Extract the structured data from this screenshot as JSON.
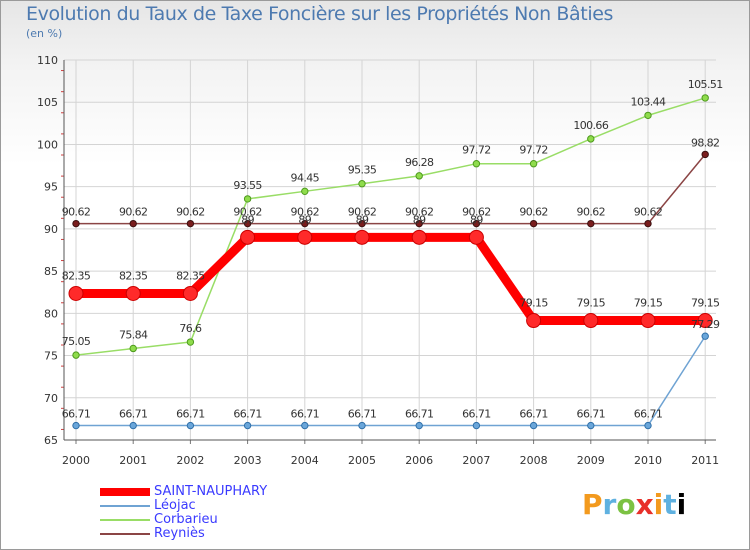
{
  "title": "Evolution du Taux de Taxe Foncière sur les Propriétés Non Bâties",
  "subtitle": "(en %)",
  "logo_text": "Proxiti",
  "chart_data": {
    "type": "line",
    "title": "Evolution du Taux de Taxe Foncière sur les Propriétés Non Bâties",
    "ylabel": "(en %)",
    "xlabel": "",
    "x": [
      "2000",
      "2001",
      "2002",
      "2003",
      "2004",
      "2005",
      "2006",
      "2007",
      "2008",
      "2009",
      "2010",
      "2011"
    ],
    "ylim": [
      65,
      110
    ],
    "yticks": [
      "65",
      "70",
      "75",
      "80",
      "85",
      "90",
      "95",
      "100",
      "105",
      "110"
    ],
    "grid": true,
    "legend_position": "bottom-left",
    "series": [
      {
        "name": "SAINT-NAUPHARY",
        "color": "#ff0000",
        "values": [
          82.35,
          82.35,
          82.35,
          89,
          89,
          89,
          89,
          89,
          79.15,
          79.15,
          79.15,
          79.15
        ],
        "labels": [
          "82.35",
          "82.35",
          "82.35",
          "89",
          "89",
          "89",
          "89",
          "89",
          "79.15",
          "79.15",
          "79.15",
          "79.15"
        ]
      },
      {
        "name": "Léojac",
        "color": "#6fa3d3",
        "values": [
          66.71,
          66.71,
          66.71,
          66.71,
          66.71,
          66.71,
          66.71,
          66.71,
          66.71,
          66.71,
          66.71,
          77.29
        ],
        "labels": [
          "66.71",
          "66.71",
          "66.71",
          "66.71",
          "66.71",
          "66.71",
          "66.71",
          "66.71",
          "66.71",
          "66.71",
          "66.71",
          "77.29"
        ]
      },
      {
        "name": "Corbarieu",
        "color": "#99dd66",
        "values": [
          75.05,
          75.84,
          76.6,
          93.55,
          94.45,
          95.35,
          96.28,
          97.72,
          97.72,
          100.66,
          103.44,
          105.51
        ],
        "labels": [
          "75.05",
          "75.84",
          "76.6",
          "93.55",
          "94.45",
          "95.35",
          "96.28",
          "97.72",
          "97.72",
          "100.66",
          "103.44",
          "105.51"
        ]
      },
      {
        "name": "Reyniès",
        "color": "#8b4545",
        "values": [
          90.62,
          90.62,
          90.62,
          90.62,
          90.62,
          90.62,
          90.62,
          90.62,
          90.62,
          90.62,
          90.62,
          98.82
        ],
        "labels": [
          "90.62",
          "90.62",
          "90.62",
          "90.62",
          "90.62",
          "90.62",
          "90.62",
          "90.62",
          "90.62",
          "90.62",
          "90.62",
          "98.82"
        ]
      }
    ]
  }
}
